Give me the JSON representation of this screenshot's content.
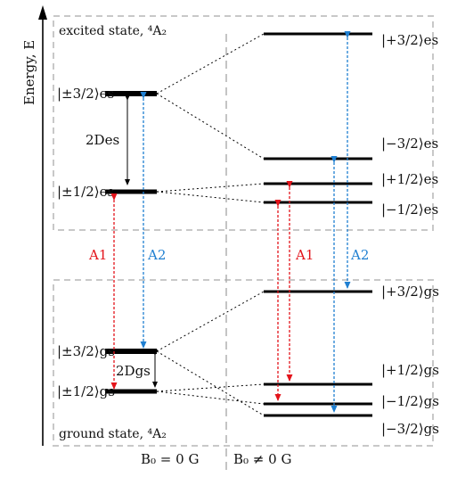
{
  "axis_label": "Energy, E",
  "boxes": {
    "excited_title": "excited state, ⁴A₂",
    "ground_title": "ground state, ⁴A₂"
  },
  "field_labels": {
    "zero": "B₀ = 0 G",
    "nonzero": "B₀ ≠ 0 G"
  },
  "left_levels": {
    "es_32": "|±3/2⟩es",
    "es_12": "|±1/2⟩es",
    "gs_32": "|±3/2⟩gs",
    "gs_12": "|±1/2⟩gs"
  },
  "right_levels": {
    "es_p32": "|+3/2⟩es",
    "es_m32": "|−3/2⟩es",
    "es_p12": "|+1/2⟩es",
    "es_m12": "|−1/2⟩es",
    "gs_p32": "|+3/2⟩gs",
    "gs_p12": "|+1/2⟩gs",
    "gs_m12": "|−1/2⟩gs",
    "gs_m32": "|−3/2⟩gs"
  },
  "splittings": {
    "es": "2Des",
    "gs": "2Dgs"
  },
  "transitions": {
    "A1_left": "A1",
    "A2_left": "A2",
    "A1_right": "A1",
    "A2_right": "A2"
  },
  "colors": {
    "A1": "#e3141b",
    "A2": "#1f7fd1",
    "box": "#c8c8c8",
    "level": "#000000"
  }
}
